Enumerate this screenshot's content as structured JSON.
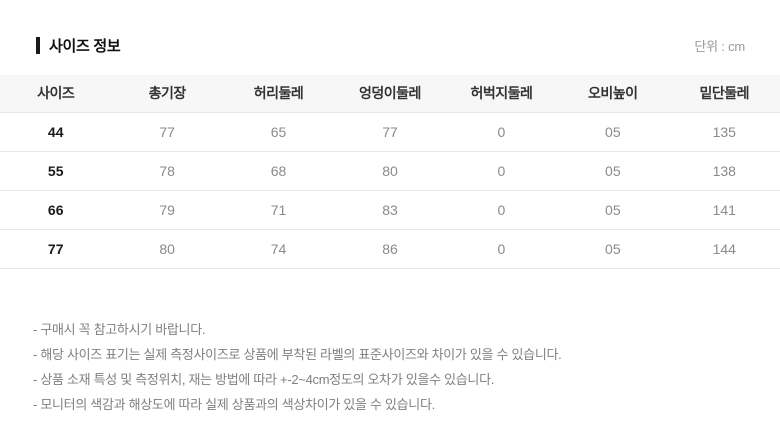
{
  "header": {
    "title": "사이즈 정보",
    "unit_label": "단위 : cm"
  },
  "size_table": {
    "columns": [
      "사이즈",
      "총기장",
      "허리둘레",
      "엉덩이둘레",
      "허벅지둘레",
      "오비높이",
      "밑단둘레"
    ],
    "rows": [
      {
        "size": "44",
        "values": [
          "77",
          "65",
          "77",
          "0",
          "05",
          "135"
        ]
      },
      {
        "size": "55",
        "values": [
          "78",
          "68",
          "80",
          "0",
          "05",
          "138"
        ]
      },
      {
        "size": "66",
        "values": [
          "79",
          "71",
          "83",
          "0",
          "05",
          "141"
        ]
      },
      {
        "size": "77",
        "values": [
          "80",
          "74",
          "86",
          "0",
          "05",
          "144"
        ]
      }
    ]
  },
  "notes": [
    "- 구매시 꼭 참고하시기 바랍니다.",
    "- 해당 사이즈 표기는 실제 측정사이즈로 상품에 부착된 라벨의 표준사이즈와 차이가 있을 수 있습니다.",
    "- 상품 소재 특성 및 측정위치, 재는 방법에 따라 +-2~4cm정도의 오차가 있을수 있습니다.",
    "- 모니터의 색감과 해상도에 따라 실제 상품과의 색상차이가 있을 수 있습니다."
  ],
  "colors": {
    "header_bg": "#f7f7f7",
    "row_border": "#e8e8e8",
    "title_text": "#111111",
    "column_header_text": "#333333",
    "size_value_text": "#1a1a1a",
    "cell_value_text": "#8a8a8a",
    "note_text": "#808080",
    "unit_text": "#999999",
    "title_accent": "#1a1a1a"
  }
}
